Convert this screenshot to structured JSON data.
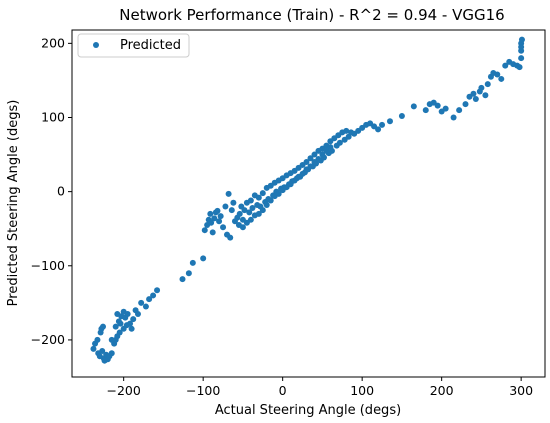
{
  "chart_data": {
    "type": "scatter",
    "title": "Network Performance (Train) - R^2 = 0.94 - VGG16",
    "xlabel": "Actual Steering Angle (degs)",
    "ylabel": "Predicted Steering Angle (degs)",
    "xlim": [
      -265,
      330
    ],
    "ylim": [
      -250,
      218
    ],
    "xticks": [
      -200,
      -100,
      0,
      100,
      200,
      300
    ],
    "yticks": [
      -200,
      -100,
      0,
      100,
      200
    ],
    "grid": false,
    "legend_position": "top-left",
    "marker_color": "#1f77b4",
    "series": [
      {
        "name": "Predicted",
        "points": [
          [
            -238,
            -212
          ],
          [
            -236,
            -205
          ],
          [
            -233,
            -200
          ],
          [
            -232,
            -218
          ],
          [
            -230,
            -222
          ],
          [
            -229,
            -190
          ],
          [
            -228,
            -185
          ],
          [
            -227,
            -215
          ],
          [
            -226,
            -182
          ],
          [
            -225,
            -225
          ],
          [
            -224,
            -228
          ],
          [
            -222,
            -220
          ],
          [
            -220,
            -226
          ],
          [
            -218,
            -222
          ],
          [
            -215,
            -218
          ],
          [
            -212,
            -205
          ],
          [
            -210,
            -200
          ],
          [
            -208,
            -195
          ],
          [
            -205,
            -190
          ],
          [
            -210,
            -182
          ],
          [
            -206,
            -175
          ],
          [
            -203,
            -168
          ],
          [
            -200,
            -162
          ],
          [
            -198,
            -170
          ],
          [
            -195,
            -165
          ],
          [
            -192,
            -178
          ],
          [
            -190,
            -185
          ],
          [
            -196,
            -180
          ],
          [
            -188,
            -172
          ],
          [
            -185,
            -160
          ],
          [
            -182,
            -165
          ],
          [
            -178,
            -150
          ],
          [
            -172,
            -155
          ],
          [
            -168,
            -145
          ],
          [
            -163,
            -140
          ],
          [
            -158,
            -133
          ],
          [
            -208,
            -165
          ],
          [
            -204,
            -178
          ],
          [
            -200,
            -185
          ],
          [
            -215,
            -200
          ],
          [
            -126,
            -118
          ],
          [
            -118,
            -110
          ],
          [
            -113,
            -96
          ],
          [
            -100,
            -90
          ],
          [
            -98,
            -52
          ],
          [
            -95,
            -45
          ],
          [
            -93,
            -38
          ],
          [
            -91,
            -30
          ],
          [
            -90,
            -42
          ],
          [
            -88,
            -55
          ],
          [
            -86,
            -36
          ],
          [
            -84,
            -28
          ],
          [
            -82,
            -26
          ],
          [
            -80,
            -40
          ],
          [
            -78,
            -33
          ],
          [
            -75,
            -48
          ],
          [
            -72,
            -20
          ],
          [
            -70,
            -58
          ],
          [
            -68,
            -3
          ],
          [
            -66,
            -62
          ],
          [
            -64,
            -25
          ],
          [
            -62,
            -15
          ],
          [
            -60,
            -40
          ],
          [
            -57,
            -35
          ],
          [
            -54,
            -30
          ],
          [
            -52,
            -20
          ],
          [
            -50,
            -38
          ],
          [
            -48,
            -25
          ],
          [
            -45,
            -15
          ],
          [
            -42,
            -28
          ],
          [
            -40,
            -12
          ],
          [
            -38,
            -22
          ],
          [
            -35,
            -5
          ],
          [
            -32,
            -18
          ],
          [
            -30,
            -8
          ],
          [
            -28,
            -20
          ],
          [
            -25,
            -2
          ],
          [
            -22,
            -14
          ],
          [
            -20,
            5
          ],
          [
            -18,
            -10
          ],
          [
            -15,
            8
          ],
          [
            -12,
            -5
          ],
          [
            -10,
            12
          ],
          [
            -8,
            0
          ],
          [
            -5,
            15
          ],
          [
            -2,
            4
          ],
          [
            0,
            18
          ],
          [
            2,
            6
          ],
          [
            5,
            22
          ],
          [
            8,
            10
          ],
          [
            10,
            25
          ],
          [
            12,
            14
          ],
          [
            15,
            28
          ],
          [
            18,
            18
          ],
          [
            20,
            32
          ],
          [
            22,
            20
          ],
          [
            25,
            36
          ],
          [
            28,
            26
          ],
          [
            30,
            40
          ],
          [
            32,
            30
          ],
          [
            35,
            45
          ],
          [
            38,
            34
          ],
          [
            40,
            50
          ],
          [
            42,
            38
          ],
          [
            45,
            55
          ],
          [
            48,
            42
          ],
          [
            50,
            58
          ],
          [
            52,
            46
          ],
          [
            55,
            62
          ],
          [
            58,
            52
          ],
          [
            60,
            68
          ],
          [
            62,
            55
          ],
          [
            65,
            72
          ],
          [
            68,
            62
          ],
          [
            70,
            76
          ],
          [
            72,
            66
          ],
          [
            75,
            80
          ],
          [
            78,
            70
          ],
          [
            80,
            82
          ],
          [
            83,
            74
          ],
          [
            86,
            80
          ],
          [
            -55,
            -45
          ],
          [
            -50,
            -48
          ],
          [
            -45,
            -42
          ],
          [
            -40,
            -38
          ],
          [
            -35,
            -32
          ],
          [
            -30,
            -30
          ],
          [
            -25,
            -25
          ],
          [
            -20,
            -18
          ],
          [
            -15,
            -12
          ],
          [
            -10,
            -6
          ],
          [
            -5,
            -3
          ],
          [
            0,
            2
          ],
          [
            5,
            6
          ],
          [
            10,
            10
          ],
          [
            15,
            15
          ],
          [
            20,
            20
          ],
          [
            25,
            24
          ],
          [
            30,
            30
          ],
          [
            35,
            34
          ],
          [
            40,
            40
          ],
          [
            45,
            44
          ],
          [
            50,
            50
          ],
          [
            55,
            55
          ],
          [
            60,
            60
          ],
          [
            90,
            78
          ],
          [
            95,
            82
          ],
          [
            100,
            86
          ],
          [
            105,
            90
          ],
          [
            110,
            92
          ],
          [
            115,
            88
          ],
          [
            120,
            84
          ],
          [
            125,
            90
          ],
          [
            135,
            95
          ],
          [
            150,
            102
          ],
          [
            165,
            115
          ],
          [
            180,
            110
          ],
          [
            185,
            118
          ],
          [
            190,
            120
          ],
          [
            195,
            116
          ],
          [
            200,
            108
          ],
          [
            205,
            112
          ],
          [
            215,
            100
          ],
          [
            222,
            110
          ],
          [
            230,
            118
          ],
          [
            235,
            128
          ],
          [
            240,
            132
          ],
          [
            243,
            125
          ],
          [
            248,
            135
          ],
          [
            250,
            140
          ],
          [
            255,
            130
          ],
          [
            258,
            145
          ],
          [
            262,
            155
          ],
          [
            265,
            160
          ],
          [
            270,
            158
          ],
          [
            275,
            152
          ],
          [
            280,
            170
          ],
          [
            285,
            175
          ],
          [
            290,
            172
          ],
          [
            295,
            170
          ],
          [
            298,
            168
          ],
          [
            300,
            190
          ],
          [
            300,
            200
          ],
          [
            301,
            205
          ],
          [
            300,
            195
          ],
          [
            300,
            180
          ]
        ]
      }
    ]
  }
}
